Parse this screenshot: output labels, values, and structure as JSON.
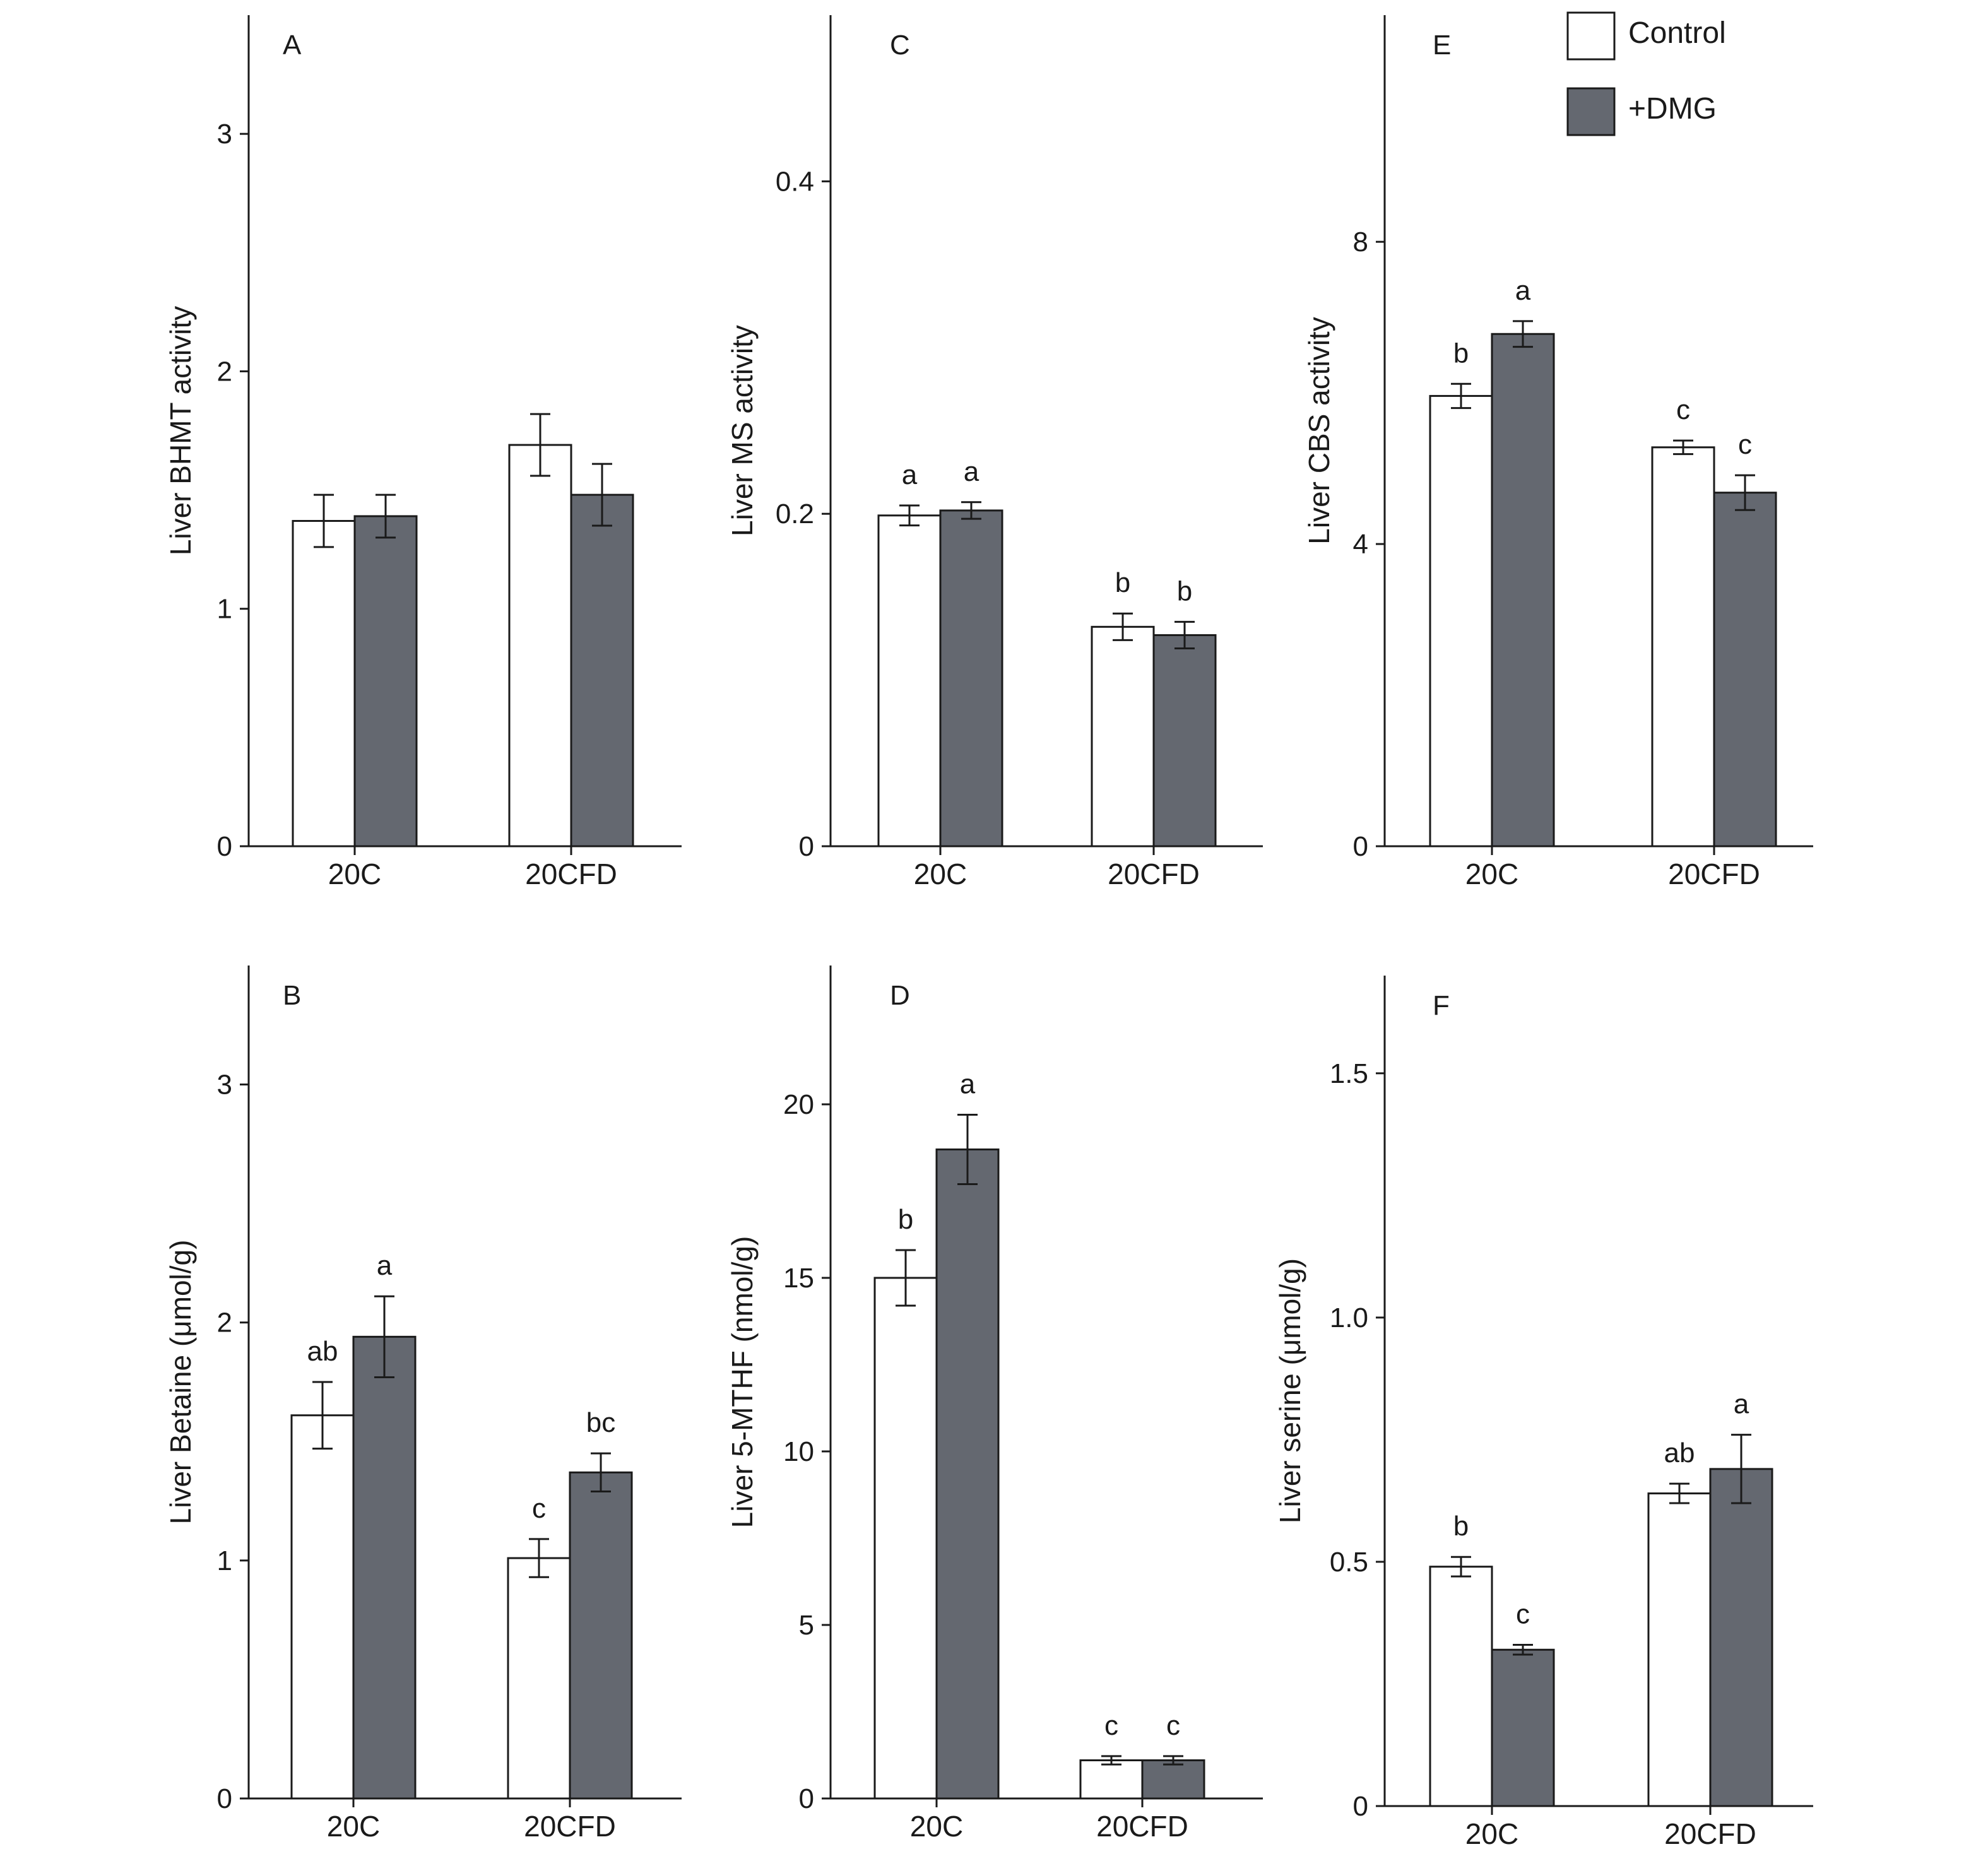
{
  "legend": {
    "items": [
      {
        "label": "Control",
        "color": "#ffffff"
      },
      {
        "label": "+DMG",
        "color": "#646870"
      }
    ]
  },
  "colors": {
    "control": "#ffffff",
    "dmg": "#646870",
    "stroke": "#1a1a1a"
  },
  "chart_data": [
    {
      "id": "A",
      "type": "bar",
      "panel_label": "A",
      "ylabel": "Liver BHMT activity",
      "ylim": [
        0,
        3.5
      ],
      "yticks": [
        0,
        1,
        2,
        3
      ],
      "ytick_labels": [
        "0",
        "1",
        "2",
        "3"
      ],
      "categories": [
        "20C",
        "20CFD"
      ],
      "series": [
        {
          "name": "Control",
          "values": [
            1.37,
            1.69
          ],
          "errors": [
            0.11,
            0.13
          ],
          "labels": [
            "",
            ""
          ]
        },
        {
          "name": "+DMG",
          "values": [
            1.39,
            1.48
          ],
          "errors": [
            0.09,
            0.13
          ],
          "labels": [
            "",
            ""
          ]
        }
      ]
    },
    {
      "id": "C",
      "type": "bar",
      "panel_label": "C",
      "ylabel": "Liver MS activity",
      "ylim": [
        0,
        0.5
      ],
      "yticks": [
        0,
        0.2,
        0.4
      ],
      "ytick_labels": [
        "0",
        "0.2",
        "0.4"
      ],
      "categories": [
        "20C",
        "20CFD"
      ],
      "series": [
        {
          "name": "Control",
          "values": [
            0.199,
            0.132
          ],
          "errors": [
            0.006,
            0.008
          ],
          "labels": [
            "a",
            "b"
          ]
        },
        {
          "name": "+DMG",
          "values": [
            0.202,
            0.127
          ],
          "errors": [
            0.005,
            0.008
          ],
          "labels": [
            "a",
            "b"
          ]
        }
      ]
    },
    {
      "id": "E",
      "type": "bar",
      "panel_label": "E",
      "ylabel": "Liver CBS activity",
      "ylim": [
        0,
        11
      ],
      "yticks": [
        0,
        4,
        8
      ],
      "ytick_labels": [
        "0",
        "4",
        "8"
      ],
      "categories": [
        "20C",
        "20CFD"
      ],
      "series": [
        {
          "name": "Control",
          "values": [
            5.96,
            5.28
          ],
          "errors": [
            0.16,
            0.09
          ],
          "labels": [
            "b",
            "c"
          ]
        },
        {
          "name": "+DMG",
          "values": [
            6.78,
            4.68
          ],
          "errors": [
            0.17,
            0.23
          ],
          "labels": [
            "a",
            "c"
          ]
        }
      ]
    },
    {
      "id": "B",
      "type": "bar",
      "panel_label": "B",
      "ylabel": "Liver Betaine (μmol/g)",
      "ylim": [
        0,
        3.5
      ],
      "yticks": [
        0,
        1,
        2,
        3
      ],
      "ytick_labels": [
        "0",
        "1",
        "2",
        "3"
      ],
      "categories": [
        "20C",
        "20CFD"
      ],
      "series": [
        {
          "name": "Control",
          "values": [
            1.61,
            1.01
          ],
          "errors": [
            0.14,
            0.08
          ],
          "labels": [
            "ab",
            "c"
          ]
        },
        {
          "name": "+DMG",
          "values": [
            1.94,
            1.37
          ],
          "errors": [
            0.17,
            0.08
          ],
          "labels": [
            "a",
            "bc"
          ]
        }
      ]
    },
    {
      "id": "D",
      "type": "bar",
      "panel_label": "D",
      "ylabel": "Liver 5-MTHF (nmol/g)",
      "ylim": [
        0,
        24
      ],
      "yticks": [
        0,
        5,
        10,
        15,
        20
      ],
      "ytick_labels": [
        "0",
        "5",
        "10",
        "15",
        "20"
      ],
      "categories": [
        "20C",
        "20CFD"
      ],
      "series": [
        {
          "name": "Control",
          "values": [
            15.0,
            1.1
          ],
          "errors": [
            0.8,
            0.12
          ],
          "labels": [
            "b",
            "c"
          ]
        },
        {
          "name": "+DMG",
          "values": [
            18.7,
            1.1
          ],
          "errors": [
            1.0,
            0.12
          ],
          "labels": [
            "a",
            "c"
          ]
        }
      ]
    },
    {
      "id": "F",
      "type": "bar",
      "panel_label": "F",
      "ylabel": "Liver serine (μmol/g)",
      "ylim": [
        0,
        1.7
      ],
      "yticks": [
        0,
        0.5,
        1.0,
        1.5
      ],
      "ytick_labels": [
        "0",
        "0.5",
        "1.0",
        "1.5"
      ],
      "categories": [
        "20C",
        "20CFD"
      ],
      "series": [
        {
          "name": "Control",
          "values": [
            0.49,
            0.64
          ],
          "errors": [
            0.02,
            0.02
          ],
          "labels": [
            "b",
            "ab"
          ]
        },
        {
          "name": "+DMG",
          "values": [
            0.32,
            0.69
          ],
          "errors": [
            0.01,
            0.07
          ],
          "labels": [
            "c",
            "a"
          ]
        }
      ]
    }
  ]
}
